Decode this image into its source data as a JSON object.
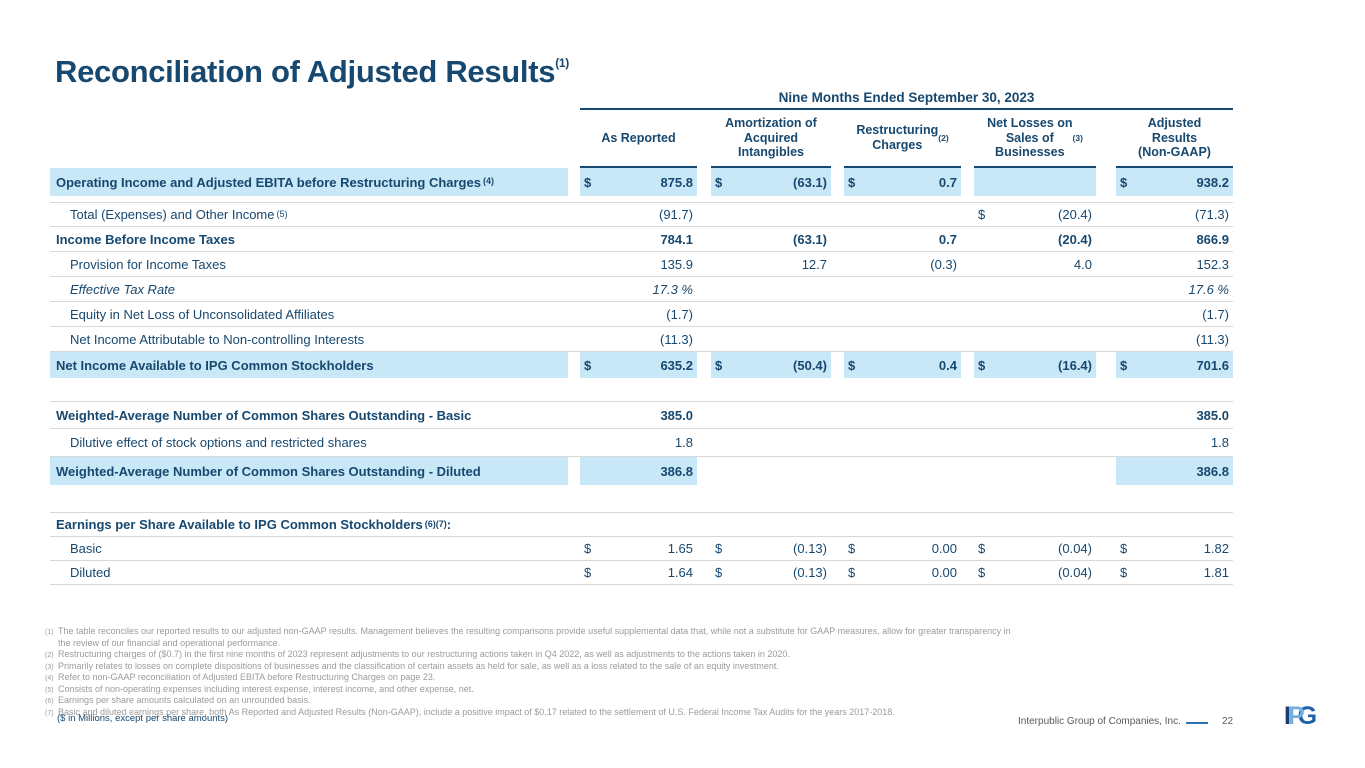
{
  "slide": {
    "title": "Reconciliation of Adjusted Results",
    "title_sup": "(1)",
    "units_note": "($ in Millions, except per share amounts)"
  },
  "colors": {
    "navy_text": "#17486F",
    "row_highlight": "#C8E7F7",
    "row_separator": "#D8D8D8",
    "footnote_gray": "#9B9B9B",
    "footer_dash_blue": "#2E74B5"
  },
  "table": {
    "period_header": "Nine Months Ended September 30, 2023",
    "columns": [
      {
        "lines": [
          "As Reported"
        ],
        "sup": ""
      },
      {
        "lines": [
          "Amortization of",
          "Acquired",
          "Intangibles"
        ],
        "sup": ""
      },
      {
        "lines": [
          "Restructuring",
          "Charges"
        ],
        "sup": "(2)"
      },
      {
        "lines": [
          "Net Losses on",
          "Sales of",
          "Businesses"
        ],
        "sup": "(3)"
      },
      {
        "lines": [
          "Adjusted",
          "Results",
          "(Non-GAAP)"
        ],
        "sup": ""
      }
    ],
    "sections": [
      {
        "rows": [
          {
            "label": "Operating Income and Adjusted EBITA before Restructuring Charges",
            "sup": "(4)",
            "bold": true,
            "hl": true,
            "cells": [
              {
                "d": "$",
                "v": "875.8",
                "hl": true
              },
              {
                "d": "$",
                "v": "(63.1)",
                "hl": true
              },
              {
                "d": "$",
                "v": "0.7",
                "hl": true
              },
              {
                "d": "",
                "v": "",
                "hl": true
              },
              {
                "d": "$",
                "v": "938.2",
                "hl": true
              }
            ]
          },
          {
            "label": "Total (Expenses) and Other Income",
            "sup": "(5)",
            "indent": true,
            "topline": true,
            "sep": true,
            "cells": [
              {
                "d": "",
                "v": "(91.7)"
              },
              null,
              null,
              {
                "d": "$",
                "v": "(20.4)"
              },
              {
                "d": "",
                "v": "(71.3)"
              }
            ]
          },
          {
            "label": "Income Before Income Taxes",
            "bold": true,
            "sep": true,
            "cells": [
              {
                "d": "",
                "v": "784.1"
              },
              {
                "d": "",
                "v": "(63.1)"
              },
              {
                "d": "",
                "v": "0.7"
              },
              {
                "d": "",
                "v": "(20.4)"
              },
              {
                "d": "",
                "v": "866.9"
              }
            ]
          },
          {
            "label": "Provision for Income Taxes",
            "indent": true,
            "sep": true,
            "cells": [
              {
                "d": "",
                "v": "135.9"
              },
              {
                "d": "",
                "v": "12.7"
              },
              {
                "d": "",
                "v": "(0.3)"
              },
              {
                "d": "",
                "v": "4.0"
              },
              {
                "d": "",
                "v": "152.3"
              }
            ]
          },
          {
            "label": "Effective Tax Rate",
            "italic": true,
            "indent": true,
            "sep": true,
            "cells": [
              {
                "d": "",
                "v": "17.3 %"
              },
              null,
              null,
              null,
              {
                "d": "",
                "v": "17.6 %"
              }
            ]
          },
          {
            "label": "Equity in Net Loss of Unconsolidated Affiliates",
            "indent": true,
            "sep": true,
            "cells": [
              {
                "d": "",
                "v": "(1.7)"
              },
              null,
              null,
              null,
              {
                "d": "",
                "v": "(1.7)"
              }
            ]
          },
          {
            "label": "Net Income Attributable to Non-controlling Interests",
            "indent": true,
            "sep": true,
            "cells": [
              {
                "d": "",
                "v": "(11.3)"
              },
              null,
              null,
              null,
              {
                "d": "",
                "v": "(11.3)"
              }
            ]
          },
          {
            "label": "Net Income Available to IPG Common Stockholders",
            "bold": true,
            "hl": true,
            "cells": [
              {
                "d": "$",
                "v": "635.2",
                "hl": true
              },
              {
                "d": "$",
                "v": "(50.4)",
                "hl": true
              },
              {
                "d": "$",
                "v": "0.4",
                "hl": true
              },
              {
                "d": "$",
                "v": "(16.4)",
                "hl": true
              },
              {
                "d": "$",
                "v": "701.6",
                "hl": true
              }
            ]
          }
        ]
      },
      {
        "rows": [
          {
            "label": "Weighted-Average Number of Common Shares Outstanding - Basic",
            "bold": true,
            "topline": true,
            "sep": true,
            "cells": [
              {
                "d": "",
                "v": "385.0"
              },
              null,
              null,
              null,
              {
                "d": "",
                "v": "385.0"
              }
            ]
          },
          {
            "label": "Dilutive effect of stock options and restricted shares",
            "indent": true,
            "sep": true,
            "cells": [
              {
                "d": "",
                "v": "1.8"
              },
              null,
              null,
              null,
              {
                "d": "",
                "v": "1.8"
              }
            ]
          },
          {
            "label": "Weighted-Average Number of Common Shares Outstanding - Diluted",
            "bold": true,
            "hl": true,
            "cells": [
              {
                "d": "",
                "v": "386.8",
                "hl": true
              },
              null,
              null,
              null,
              {
                "d": "",
                "v": "386.8",
                "hl": true
              }
            ]
          }
        ]
      },
      {
        "rows": [
          {
            "label": "Earnings per Share Available to IPG Common Stockholders",
            "sup": "(6)(7)",
            "suffix": ":",
            "bold": true,
            "topline": true,
            "sep": true,
            "cells": [
              null,
              null,
              null,
              null,
              null
            ]
          },
          {
            "label": "Basic",
            "indent": true,
            "sep": true,
            "cells": [
              {
                "d": "$",
                "v": "1.65"
              },
              {
                "d": "$",
                "v": "(0.13)"
              },
              {
                "d": "$",
                "v": "0.00"
              },
              {
                "d": "$",
                "v": "(0.04)"
              },
              {
                "d": "$",
                "v": "1.82"
              }
            ]
          },
          {
            "label": "Diluted",
            "indent": true,
            "sep": true,
            "cells": [
              {
                "d": "$",
                "v": "1.64"
              },
              {
                "d": "$",
                "v": "(0.13)"
              },
              {
                "d": "$",
                "v": "0.00"
              },
              {
                "d": "$",
                "v": "(0.04)"
              },
              {
                "d": "$",
                "v": "1.81"
              }
            ]
          }
        ]
      }
    ]
  },
  "footnotes": [
    {
      "n": "(1)",
      "text": "The table reconciles our reported results to our adjusted non-GAAP results. Management believes the resulting comparisons provide useful supplemental data that, while not a substitute for GAAP measures, allow for greater transparency in the review of our financial and operational performance."
    },
    {
      "n": "(2)",
      "text": "Restructuring charges of ($0.7) in the first nine months of 2023 represent adjustments to our restructuring actions taken in Q4 2022, as well as adjustments to the actions taken in 2020."
    },
    {
      "n": "(3)",
      "text": "Primarily relates to losses on complete dispositions of businesses and the classification of certain assets as held for sale, as well as a loss related to the sale of an equity investment."
    },
    {
      "n": "(4)",
      "text": "Refer to non-GAAP reconciliation of Adjusted EBITA before Restructuring Charges on page 23."
    },
    {
      "n": "(5)",
      "text": "Consists of non-operating expenses including interest expense, interest income, and other expense, net."
    },
    {
      "n": "(6)",
      "text": "Earnings per share amounts calculated on an unrounded basis."
    },
    {
      "n": "(7)",
      "text": "Basic and diluted earnings per share, both As Reported and Adjusted Results (Non-GAAP), include a positive impact of $0.17 related to the settlement of U.S. Federal Income Tax Audits for the years 2017-2018."
    }
  ],
  "footer": {
    "company": "Interpublic Group of Companies, Inc.",
    "page": "22",
    "logo_letters": [
      "I",
      "P",
      "G"
    ]
  }
}
